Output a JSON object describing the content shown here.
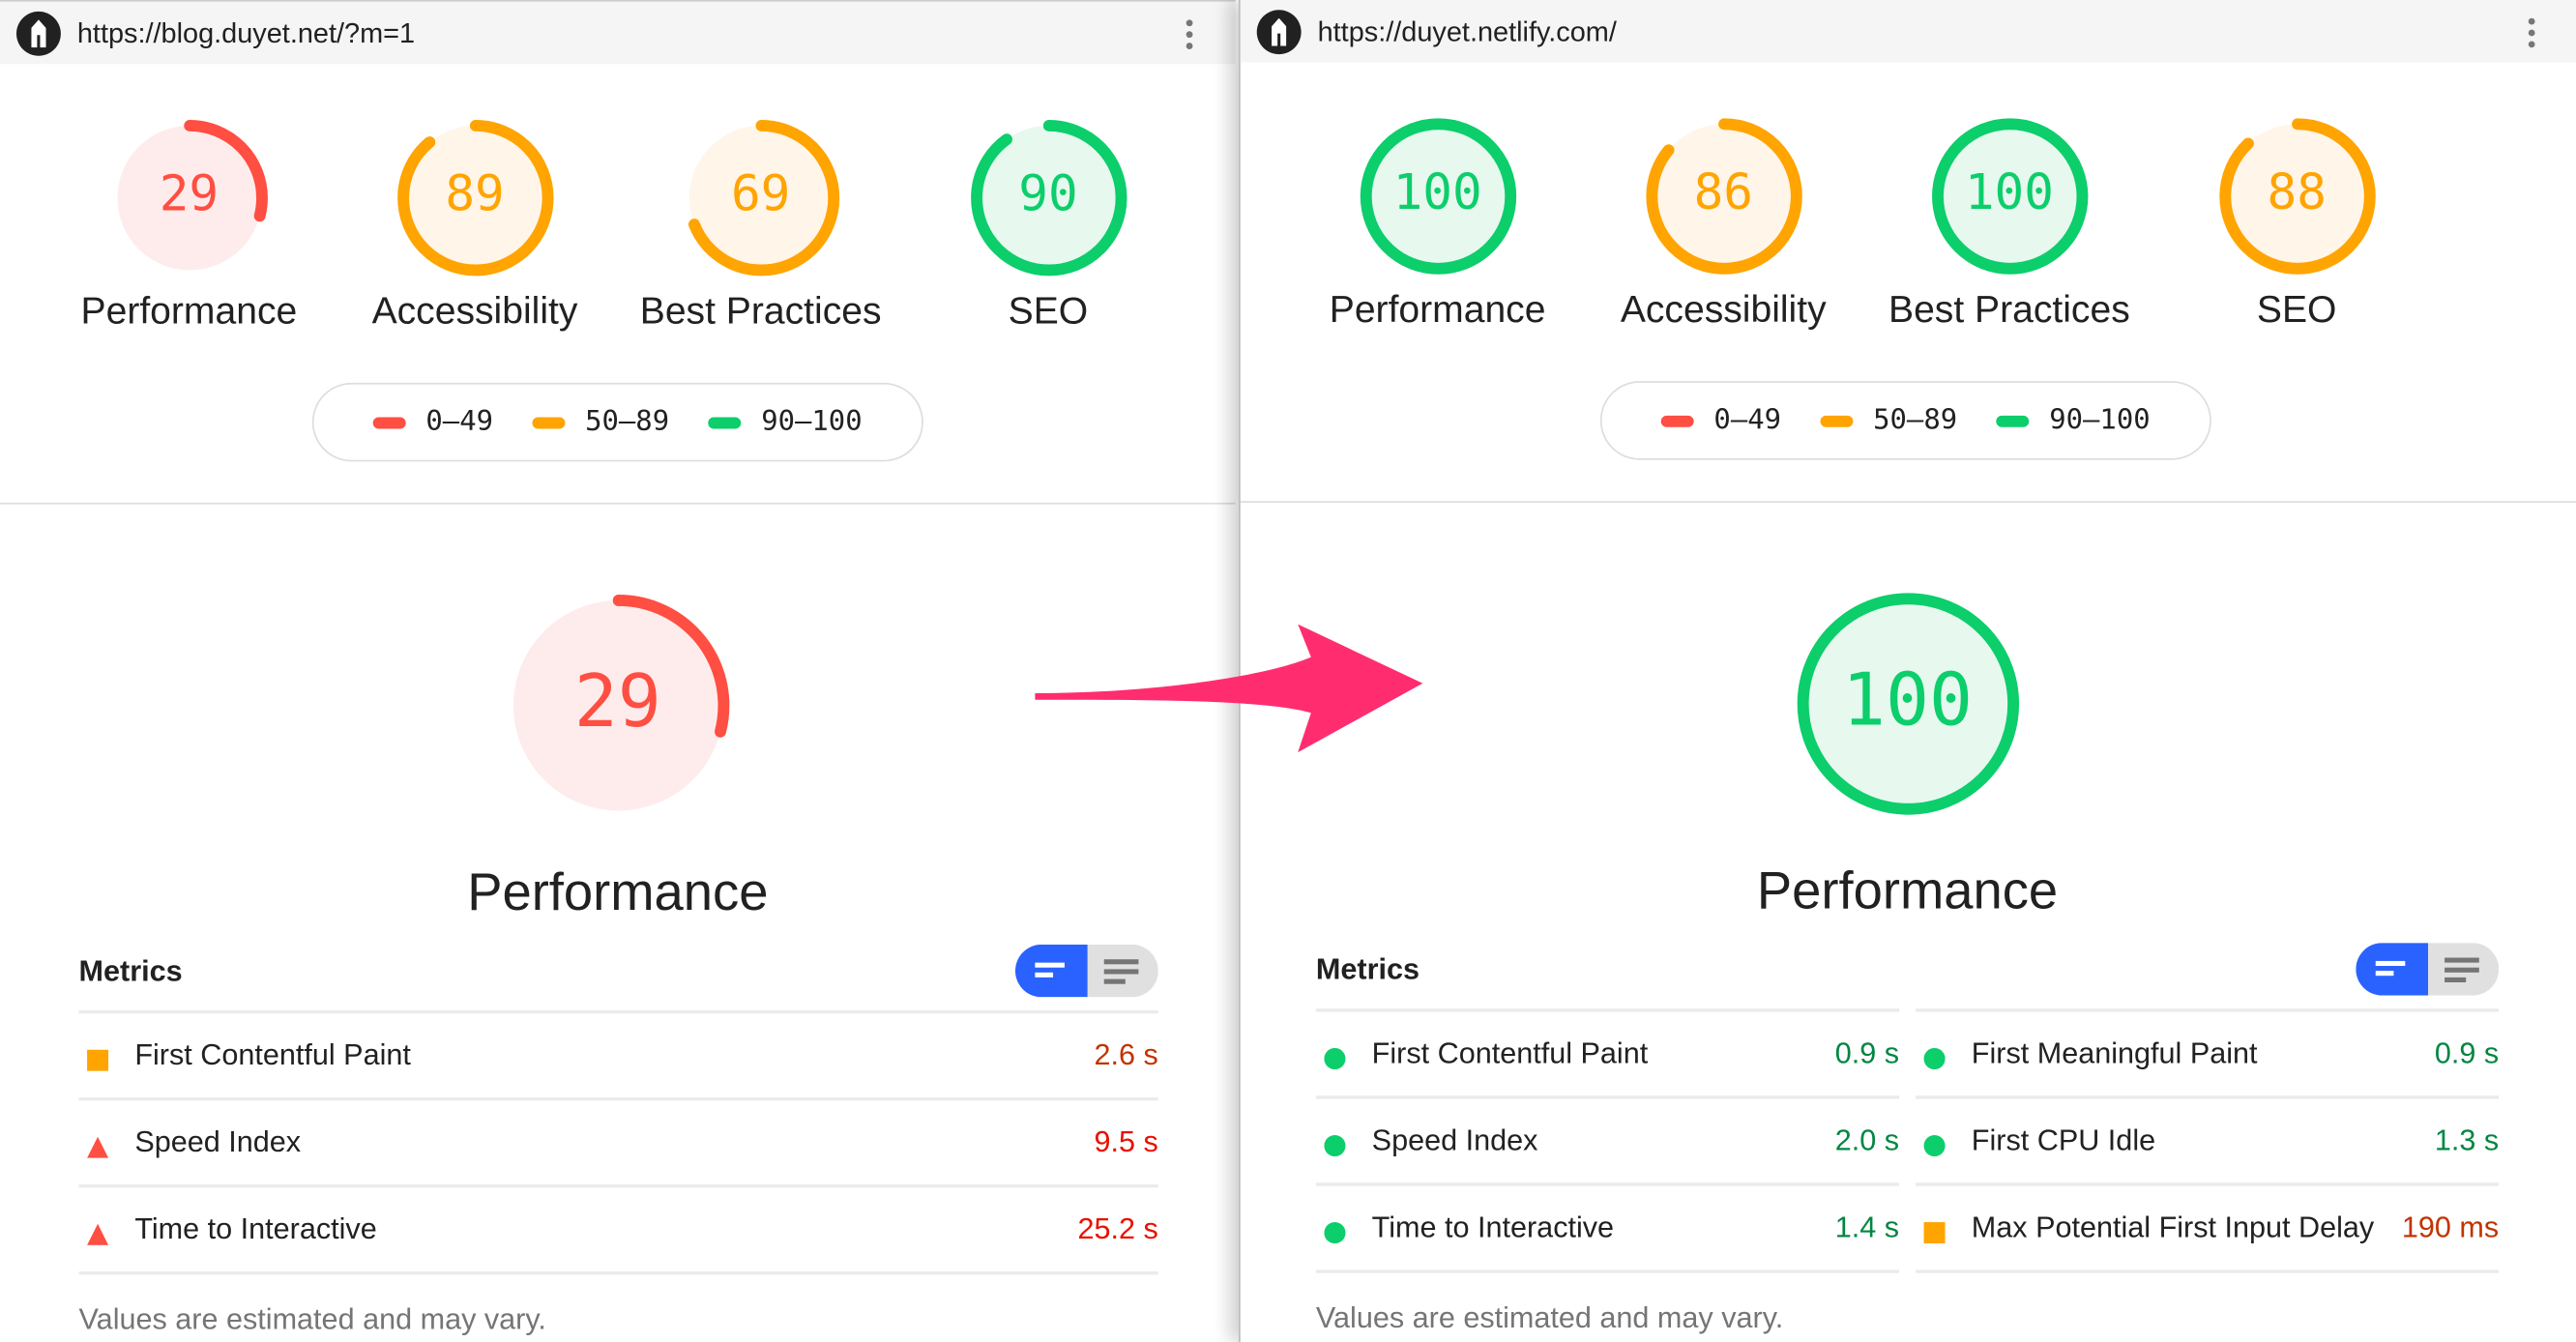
{
  "colors": {
    "fail": "#ff4e42",
    "average": "#ffa400",
    "pass": "#0cce6b",
    "fail_bg": "#feecec",
    "average_bg": "#fff5e8",
    "pass_bg": "#e7f8ef",
    "fail_text": "#eb0f00",
    "average_text": "#c33300",
    "pass_text": "#018642",
    "arrow": "#ff2d6f",
    "toggle_active": "#2962ff"
  },
  "legend": [
    {
      "label": "0–49",
      "rating": "fail"
    },
    {
      "label": "50–89",
      "rating": "average"
    },
    {
      "label": "90–100",
      "rating": "pass"
    }
  ],
  "panels": [
    {
      "url": "https://blog.duyet.net/?m=1",
      "categories": [
        {
          "label": "Performance",
          "score": 29
        },
        {
          "label": "Accessibility",
          "score": 89
        },
        {
          "label": "Best Practices",
          "score": 69
        },
        {
          "label": "SEO",
          "score": 90
        }
      ],
      "main": {
        "label": "Performance",
        "score": 29
      },
      "metrics_title": "Metrics",
      "metrics": [
        {
          "name": "First Contentful Paint",
          "value": "2.6 s",
          "rating": "average"
        },
        {
          "name": "Speed Index",
          "value": "9.5 s",
          "rating": "fail"
        },
        {
          "name": "Time to Interactive",
          "value": "25.2 s",
          "rating": "fail"
        }
      ],
      "footer": "Values are estimated and may vary."
    },
    {
      "url": "https://duyet.netlify.com/",
      "categories": [
        {
          "label": "Performance",
          "score": 100
        },
        {
          "label": "Accessibility",
          "score": 86
        },
        {
          "label": "Best Practices",
          "score": 100
        },
        {
          "label": "SEO",
          "score": 88
        }
      ],
      "main": {
        "label": "Performance",
        "score": 100
      },
      "metrics_title": "Metrics",
      "metrics": [
        {
          "name": "First Contentful Paint",
          "value": "0.9 s",
          "rating": "pass"
        },
        {
          "name": "First Meaningful Paint",
          "value": "0.9 s",
          "rating": "pass"
        },
        {
          "name": "Speed Index",
          "value": "2.0 s",
          "rating": "pass"
        },
        {
          "name": "First CPU Idle",
          "value": "1.3 s",
          "rating": "pass"
        },
        {
          "name": "Time to Interactive",
          "value": "1.4 s",
          "rating": "pass"
        },
        {
          "name": "Max Potential First Input Delay",
          "value": "190 ms",
          "rating": "average"
        }
      ],
      "footer": "Values are estimated and may vary."
    }
  ]
}
